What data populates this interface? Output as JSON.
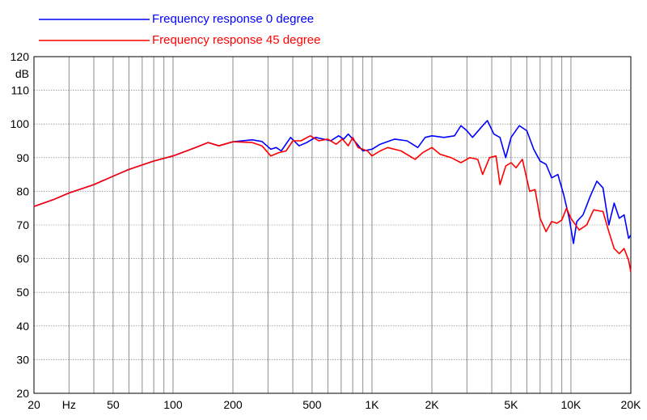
{
  "chart_data": {
    "type": "line",
    "x_scale": "log",
    "xlim": [
      20,
      20000
    ],
    "ylim": [
      20,
      120
    ],
    "ylabel": "dB",
    "grid": true,
    "legend_placement": "top-left",
    "x_tick_labels": [
      {
        "value": 20,
        "label": "20"
      },
      {
        "value": 30,
        "label": "Hz"
      },
      {
        "value": 50,
        "label": "50"
      },
      {
        "value": 100,
        "label": "100"
      },
      {
        "value": 200,
        "label": "200"
      },
      {
        "value": 500,
        "label": "500"
      },
      {
        "value": 1000,
        "label": "1K"
      },
      {
        "value": 2000,
        "label": "2K"
      },
      {
        "value": 5000,
        "label": "5K"
      },
      {
        "value": 10000,
        "label": "10K"
      },
      {
        "value": 20000,
        "label": "20K"
      }
    ],
    "y_ticks": [
      20,
      30,
      40,
      50,
      60,
      70,
      80,
      90,
      100,
      110,
      120
    ],
    "series": [
      {
        "name": "Frequency response 0 degree",
        "color": "#0000ff",
        "points": [
          [
            20,
            75.5
          ],
          [
            25,
            77.5
          ],
          [
            30,
            79.5
          ],
          [
            40,
            82.0
          ],
          [
            50,
            84.5
          ],
          [
            60,
            86.5
          ],
          [
            80,
            89.0
          ],
          [
            100,
            90.5
          ],
          [
            130,
            93.0
          ],
          [
            150,
            94.5
          ],
          [
            170,
            93.5
          ],
          [
            200,
            94.7
          ],
          [
            250,
            95.3
          ],
          [
            280,
            94.8
          ],
          [
            310,
            92.5
          ],
          [
            330,
            93.0
          ],
          [
            350,
            92.0
          ],
          [
            390,
            96.0
          ],
          [
            430,
            93.5
          ],
          [
            470,
            94.5
          ],
          [
            520,
            96.0
          ],
          [
            570,
            95.5
          ],
          [
            620,
            95.0
          ],
          [
            680,
            96.5
          ],
          [
            720,
            95.5
          ],
          [
            760,
            97.0
          ],
          [
            830,
            94.5
          ],
          [
            900,
            92.0
          ],
          [
            1000,
            92.5
          ],
          [
            1100,
            94.0
          ],
          [
            1300,
            95.5
          ],
          [
            1500,
            95.0
          ],
          [
            1700,
            93.0
          ],
          [
            1850,
            96.0
          ],
          [
            2000,
            96.5
          ],
          [
            2300,
            96.0
          ],
          [
            2600,
            96.5
          ],
          [
            2800,
            99.5
          ],
          [
            3000,
            98.0
          ],
          [
            3200,
            96.0
          ],
          [
            3600,
            99.5
          ],
          [
            3800,
            101.0
          ],
          [
            4100,
            97.0
          ],
          [
            4400,
            96.0
          ],
          [
            4700,
            90.0
          ],
          [
            5000,
            96.0
          ],
          [
            5500,
            99.5
          ],
          [
            6000,
            98.0
          ],
          [
            6500,
            92.5
          ],
          [
            7000,
            89.0
          ],
          [
            7500,
            88.0
          ],
          [
            8000,
            84.0
          ],
          [
            8600,
            85.0
          ],
          [
            9200,
            79.0
          ],
          [
            9800,
            72.0
          ],
          [
            10300,
            64.5
          ],
          [
            10700,
            71.0
          ],
          [
            11500,
            73.0
          ],
          [
            12500,
            78.5
          ],
          [
            13500,
            83.0
          ],
          [
            14500,
            81.0
          ],
          [
            15500,
            70.0
          ],
          [
            16500,
            76.5
          ],
          [
            17500,
            72.0
          ],
          [
            18500,
            73.0
          ],
          [
            19500,
            66.0
          ],
          [
            20000,
            67.0
          ]
        ]
      },
      {
        "name": "Frequency response 45 degree",
        "color": "#ff0000",
        "points": [
          [
            20,
            75.5
          ],
          [
            25,
            77.5
          ],
          [
            30,
            79.5
          ],
          [
            40,
            82.0
          ],
          [
            50,
            84.5
          ],
          [
            60,
            86.5
          ],
          [
            80,
            89.0
          ],
          [
            100,
            90.5
          ],
          [
            130,
            93.0
          ],
          [
            150,
            94.5
          ],
          [
            170,
            93.5
          ],
          [
            200,
            94.7
          ],
          [
            250,
            94.5
          ],
          [
            280,
            93.5
          ],
          [
            310,
            90.5
          ],
          [
            340,
            91.5
          ],
          [
            370,
            92.0
          ],
          [
            400,
            95.0
          ],
          [
            440,
            95.0
          ],
          [
            490,
            96.5
          ],
          [
            540,
            95.0
          ],
          [
            600,
            95.5
          ],
          [
            660,
            94.0
          ],
          [
            710,
            95.5
          ],
          [
            760,
            93.5
          ],
          [
            800,
            96.0
          ],
          [
            850,
            93.0
          ],
          [
            950,
            92.0
          ],
          [
            1000,
            90.5
          ],
          [
            1100,
            92.0
          ],
          [
            1200,
            93.0
          ],
          [
            1400,
            92.0
          ],
          [
            1650,
            89.5
          ],
          [
            1800,
            91.5
          ],
          [
            2000,
            93.0
          ],
          [
            2200,
            91.0
          ],
          [
            2500,
            90.0
          ],
          [
            2800,
            88.5
          ],
          [
            3100,
            90.0
          ],
          [
            3400,
            89.5
          ],
          [
            3600,
            85.0
          ],
          [
            3900,
            90.0
          ],
          [
            4200,
            90.5
          ],
          [
            4400,
            82.0
          ],
          [
            4700,
            87.5
          ],
          [
            5000,
            88.5
          ],
          [
            5300,
            87.0
          ],
          [
            5700,
            89.5
          ],
          [
            6200,
            80.0
          ],
          [
            6600,
            80.5
          ],
          [
            7000,
            72.0
          ],
          [
            7500,
            68.0
          ],
          [
            8000,
            71.0
          ],
          [
            8500,
            70.5
          ],
          [
            9000,
            71.5
          ],
          [
            9500,
            75.0
          ],
          [
            10000,
            72.0
          ],
          [
            11000,
            68.5
          ],
          [
            12000,
            70.0
          ],
          [
            13000,
            74.5
          ],
          [
            14500,
            74.0
          ],
          [
            15500,
            68.0
          ],
          [
            16500,
            63.0
          ],
          [
            17500,
            61.5
          ],
          [
            18500,
            63.0
          ],
          [
            19500,
            59.5
          ],
          [
            20000,
            56.0
          ]
        ]
      }
    ]
  }
}
